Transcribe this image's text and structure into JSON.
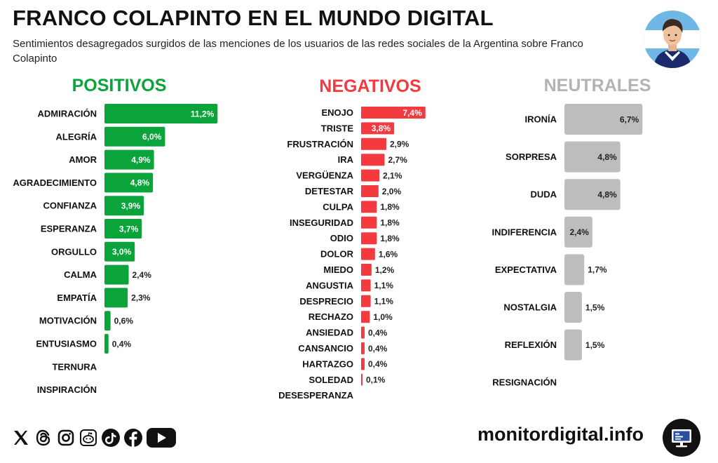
{
  "header": {
    "title": "FRANCO COLAPINTO EN EL MUNDO DIGITAL",
    "subtitle": "Sentimientos desagregados surgidos de las menciones de los usuarios de las redes sociales de la Argentina sobre Franco Colapinto"
  },
  "colors": {
    "positive": "#0aa43a",
    "negative": "#f23a3f",
    "neutral": "#bdbdbd",
    "neutral_heading": "#b3b3b3"
  },
  "footer": {
    "site": "monitordigital.info",
    "social_icons": [
      "x-icon",
      "threads-icon",
      "instagram-icon",
      "reddit-icon",
      "tiktok-icon",
      "facebook-icon",
      "youtube-icon"
    ]
  },
  "chart_data": [
    {
      "type": "bar",
      "orientation": "horizontal",
      "title": "POSITIVOS",
      "categories": [
        "ADMIRACIÓN",
        "ALEGRÍA",
        "AMOR",
        "AGRADECIMIENTO",
        "CONFIANZA",
        "ESPERANZA",
        "ORGULLO",
        "CALMA",
        "EMPATÍA",
        "MOTIVACIÓN",
        "ENTUSIASMO",
        "TERNURA",
        "INSPIRACIÓN"
      ],
      "values": [
        11.2,
        6.0,
        4.9,
        4.8,
        3.9,
        3.7,
        3.0,
        2.4,
        2.3,
        0.6,
        0.4,
        null,
        null
      ],
      "value_labels": [
        "11,2%",
        "6,0%",
        "4,9%",
        "4,8%",
        "3,9%",
        "3,7%",
        "3,0%",
        "2,4%",
        "2,3%",
        "0,6%",
        "0,4%",
        "",
        ""
      ],
      "color": "#0aa43a"
    },
    {
      "type": "bar",
      "orientation": "horizontal",
      "title": "NEGATIVOS",
      "categories": [
        "ENOJO",
        "TRISTE",
        "FRUSTRACIÓN",
        "IRA",
        "VERGÜENZA",
        "DETESTAR",
        "CULPA",
        "INSEGURIDAD",
        "ODIO",
        "DOLOR",
        "MIEDO",
        "ANGUSTIA",
        "DESPRECIO",
        "RECHAZO",
        "ANSIEDAD",
        "CANSANCIO",
        "HARTAZGO",
        "SOLEDAD",
        "DESESPERANZA"
      ],
      "values": [
        7.4,
        3.8,
        2.9,
        2.7,
        2.1,
        2.0,
        1.8,
        1.8,
        1.8,
        1.6,
        1.2,
        1.1,
        1.1,
        1.0,
        0.4,
        0.4,
        0.4,
        0.1,
        null
      ],
      "value_labels": [
        "7,4%",
        "3,8%",
        "2,9%",
        "2,7%",
        "2,1%",
        "2,0%",
        "1,8%",
        "1,8%",
        "1,8%",
        "1,6%",
        "1,2%",
        "1,1%",
        "1,1%",
        "1,0%",
        "0,4%",
        "0,4%",
        "0,4%",
        "0,1%",
        ""
      ],
      "color": "#f23a3f"
    },
    {
      "type": "bar",
      "orientation": "horizontal",
      "title": "NEUTRALES",
      "categories": [
        "IRONÍA",
        "SORPRESA",
        "DUDA",
        "INDIFERENCIA",
        "EXPECTATIVA",
        "NOSTALGIA",
        "REFLEXIÓN",
        "RESIGNACIÓN"
      ],
      "values": [
        6.7,
        4.8,
        4.8,
        2.4,
        1.7,
        1.5,
        1.5,
        null
      ],
      "value_labels": [
        "6,7%",
        "4,8%",
        "4,8%",
        "2,4%",
        "1,7%",
        "1,5%",
        "1,5%",
        ""
      ],
      "color": "#bdbdbd"
    }
  ]
}
